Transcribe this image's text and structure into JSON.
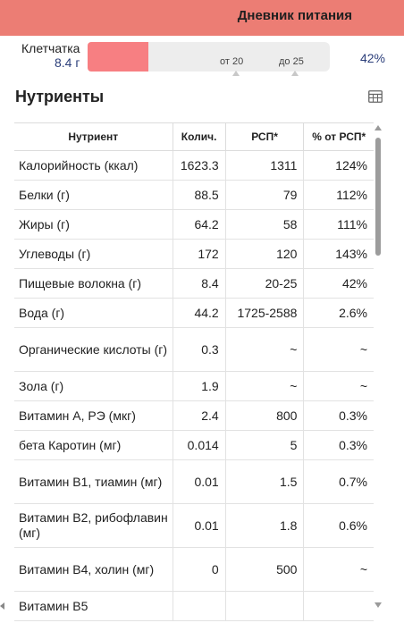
{
  "header": {
    "title": "Дневник питания"
  },
  "fiber": {
    "label": "Клетчатка",
    "value": "8.4 г",
    "progress_fraction": 0.42,
    "tick_from": "от 20",
    "tick_to": "до 25",
    "percent": "42%",
    "fill_color": "#f77f82"
  },
  "nutrients": {
    "title": "Нутриенты",
    "table_icon": "table-grid-icon",
    "columns": [
      "Нутриент",
      "Колич.",
      "РСП*",
      "% от РСП*"
    ],
    "rows": [
      [
        "Калорийность (ккал)",
        "1623.3",
        "1311",
        "124%"
      ],
      [
        "Белки (г)",
        "88.5",
        "79",
        "112%"
      ],
      [
        "Жиры (г)",
        "64.2",
        "58",
        "111%"
      ],
      [
        "Углеводы (г)",
        "172",
        "120",
        "143%"
      ],
      [
        "Пищевые волокна (г)",
        "8.4",
        "20-25",
        "42%"
      ],
      [
        "Вода (г)",
        "44.2",
        "1725-2588",
        "2.6%"
      ],
      [
        "Органические кислоты (г)",
        "0.3",
        "~",
        "~"
      ],
      [
        "Зола (г)",
        "1.9",
        "~",
        "~"
      ],
      [
        "Витамин А, РЭ (мкг)",
        "2.4",
        "800",
        "0.3%"
      ],
      [
        "бета Каротин (мг)",
        "0.014",
        "5",
        "0.3%"
      ],
      [
        "Витамин В1, тиамин (мг)",
        "0.01",
        "1.5",
        "0.7%"
      ],
      [
        "Витамин В2, рибофлавин (мг)",
        "0.01",
        "1.8",
        "0.6%"
      ],
      [
        "Витамин В4, холин (мг)",
        "0",
        "500",
        "~"
      ],
      [
        "Витамин В5",
        "",
        "",
        ""
      ]
    ]
  },
  "colors": {
    "header_bg": "#ec7d74",
    "accent_text": "#2b3e7a"
  }
}
